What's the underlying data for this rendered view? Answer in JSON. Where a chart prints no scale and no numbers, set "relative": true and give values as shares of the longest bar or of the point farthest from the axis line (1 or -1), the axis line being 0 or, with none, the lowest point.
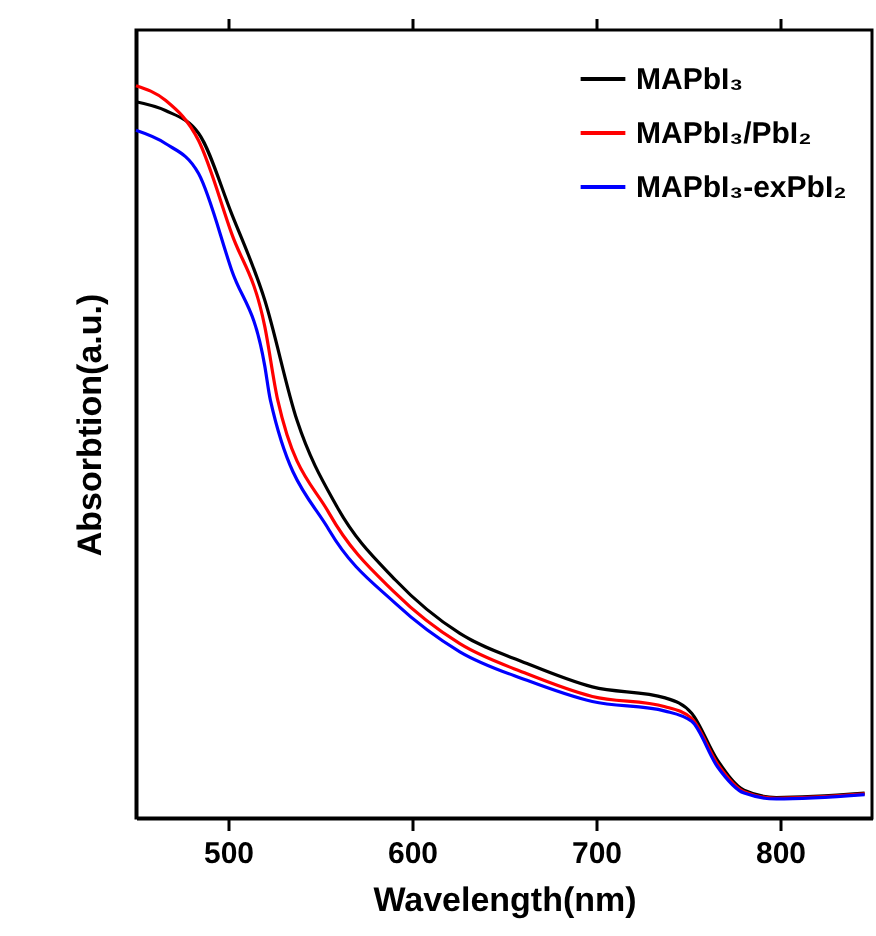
{
  "chart_data": {
    "type": "line",
    "xlabel": "Wavelength(nm)",
    "ylabel": "Absorbtion(a.u.)",
    "relative": true,
    "xlim": [
      450,
      850
    ],
    "xticks": [
      500,
      600,
      700,
      800
    ],
    "grid": false,
    "legend": "top right",
    "marker": "none",
    "line_style": "solid",
    "series": [
      {
        "name": "MAPbI₃",
        "color": "#000000",
        "x": [
          450,
          466,
          484,
          502,
          520,
          537.5,
          559,
          591,
          626,
          662.5,
          698,
          737.6,
          752,
          766,
          780.5,
          798,
          846
        ],
        "values": [
          0.978,
          0.966,
          0.935,
          0.825,
          0.707,
          0.543,
          0.426,
          0.325,
          0.252,
          0.211,
          0.179,
          0.164,
          0.143,
          0.079,
          0.038,
          0.028,
          0.034
        ]
      },
      {
        "name": "MAPbI₃/PbI₂",
        "color": "#ff0000",
        "x": [
          450,
          466,
          484,
          502,
          520,
          527,
          555,
          591,
          626,
          662.5,
          698,
          737.6,
          752,
          766,
          780.5,
          798,
          846
        ],
        "values": [
          1.0,
          0.98,
          0.925,
          0.798,
          0.671,
          0.571,
          0.416,
          0.307,
          0.238,
          0.197,
          0.166,
          0.152,
          0.136,
          0.074,
          0.036,
          0.027,
          0.033
        ]
      },
      {
        "name": "MAPbI₃-exPbI₂",
        "color": "#0000ff",
        "x": [
          450,
          466,
          484,
          502,
          520,
          523,
          555,
          591,
          626,
          662.5,
          698,
          737.6,
          752,
          766,
          780.5,
          798,
          846
        ],
        "values": [
          0.939,
          0.921,
          0.88,
          0.748,
          0.617,
          0.571,
          0.393,
          0.293,
          0.227,
          0.188,
          0.159,
          0.146,
          0.132,
          0.07,
          0.034,
          0.026,
          0.032
        ]
      }
    ]
  }
}
